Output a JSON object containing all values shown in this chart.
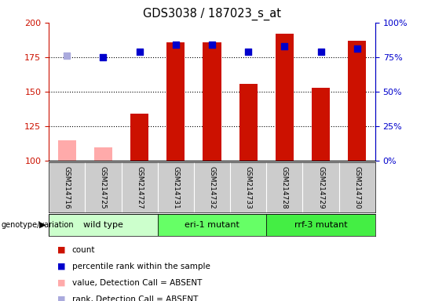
{
  "title": "GDS3038 / 187023_s_at",
  "samples": [
    "GSM214716",
    "GSM214725",
    "GSM214727",
    "GSM214731",
    "GSM214732",
    "GSM214733",
    "GSM214728",
    "GSM214729",
    "GSM214730"
  ],
  "count_values": [
    115,
    110,
    134,
    186,
    186,
    156,
    192,
    153,
    187
  ],
  "count_absent": [
    true,
    true,
    false,
    false,
    false,
    false,
    false,
    false,
    false
  ],
  "percentile_values": [
    76,
    75,
    79,
    84,
    84,
    79,
    83,
    79,
    81
  ],
  "percentile_absent": [
    true,
    false,
    false,
    false,
    false,
    false,
    false,
    false,
    false
  ],
  "ylim_left": [
    100,
    200
  ],
  "ylim_right": [
    0,
    100
  ],
  "yticks_left": [
    100,
    125,
    150,
    175,
    200
  ],
  "yticks_right": [
    0,
    25,
    50,
    75,
    100
  ],
  "groups": [
    {
      "label": "wild type",
      "indices": [
        0,
        1,
        2
      ],
      "color": "#ccffcc"
    },
    {
      "label": "eri-1 mutant",
      "indices": [
        3,
        4,
        5
      ],
      "color": "#66ff66"
    },
    {
      "label": "rrf-3 mutant",
      "indices": [
        6,
        7,
        8
      ],
      "color": "#44ee44"
    }
  ],
  "bar_color_present": "#cc1100",
  "bar_color_absent": "#ffaaaa",
  "dot_color_present": "#0000cc",
  "dot_color_absent": "#aaaadd",
  "bar_width": 0.5,
  "dot_size": 35,
  "left_axis_color": "#cc1100",
  "right_axis_color": "#0000cc",
  "legend_items": [
    {
      "label": "count",
      "color": "#cc1100"
    },
    {
      "label": "percentile rank within the sample",
      "color": "#0000cc"
    },
    {
      "label": "value, Detection Call = ABSENT",
      "color": "#ffaaaa"
    },
    {
      "label": "rank, Detection Call = ABSENT",
      "color": "#aaaadd"
    }
  ]
}
